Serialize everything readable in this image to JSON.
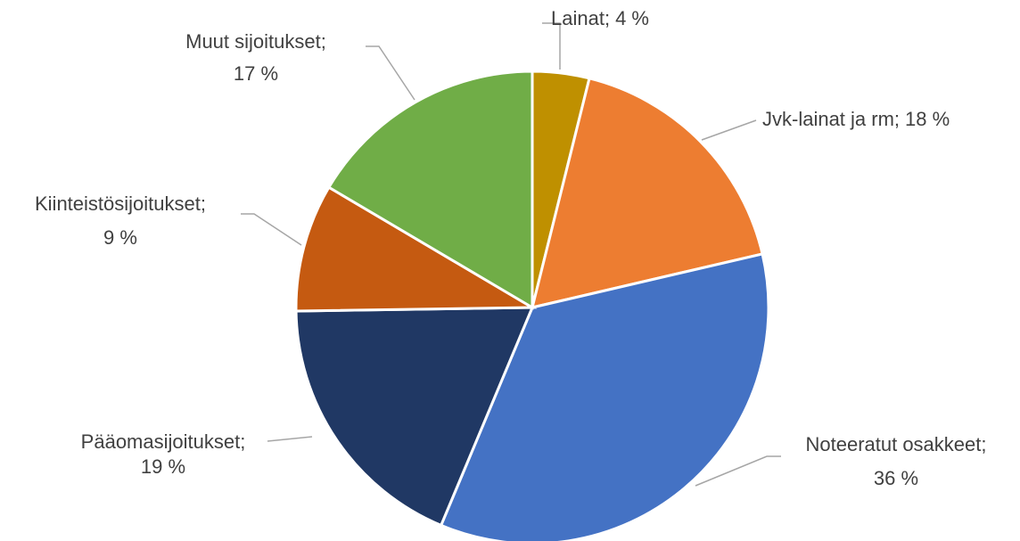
{
  "chart_data": {
    "type": "pie",
    "categories": [
      "Lainat;",
      "Jvk-lainat ja rm;",
      "Noteeratut osakkeet;",
      "Pääomasijoitukset;",
      "Kiinteistösijoitukset;",
      "Muut sijoitukset;"
    ],
    "values": [
      4,
      18,
      36,
      19,
      9,
      17
    ],
    "value_labels": [
      "4 %",
      "18 %",
      "36 %",
      "19 %",
      "9 %",
      "17 %"
    ],
    "colors": [
      "#bf9000",
      "#ed7d31",
      "#4472c4",
      "#203864",
      "#c55a11",
      "#70ad47"
    ]
  }
}
